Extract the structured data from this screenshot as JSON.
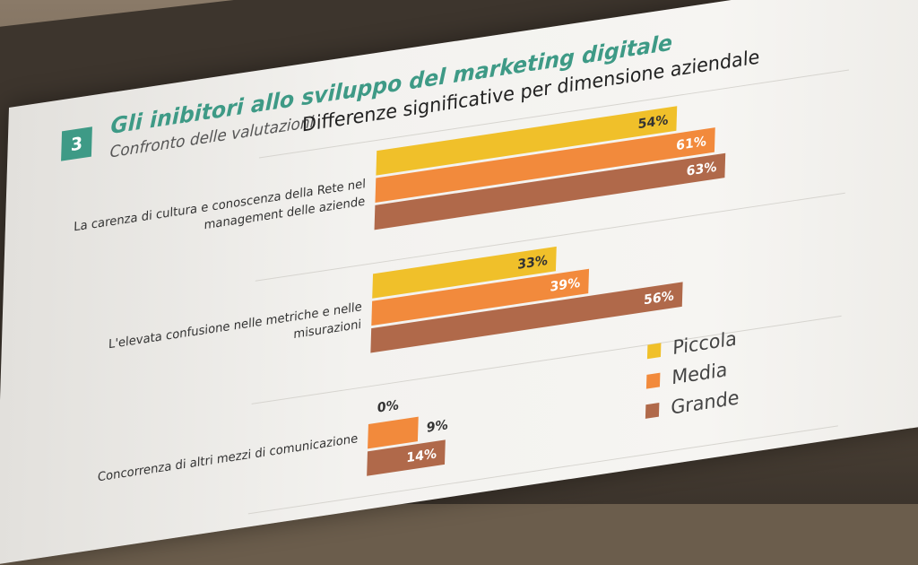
{
  "slide": {
    "section_number": "3",
    "title": "Gli inibitori allo sviluppo del marketing digitale",
    "subtitle": "Confronto delle valutazioni",
    "chart_heading": "Differenze significative per dimensione aziendale"
  },
  "chart_data": {
    "type": "bar",
    "orientation": "horizontal",
    "title": "Differenze significative per dimensione aziendale",
    "categories": [
      [
        "La carenza di cultura e conoscenza della Rete nel",
        "management delle aziende"
      ],
      [
        "L'elevata confusione nelle metriche e nelle",
        "misurazioni"
      ],
      [
        "Concorrenza di altri mezzi di comunicazione"
      ]
    ],
    "series": [
      {
        "name": "Piccola",
        "color": "#f0c02a",
        "values": [
          54,
          33,
          0
        ],
        "labels": [
          "54%",
          "33%",
          "0%"
        ]
      },
      {
        "name": "Media",
        "color": "#f28a3c",
        "values": [
          61,
          39,
          9
        ],
        "labels": [
          "61%",
          "39%",
          "9%"
        ]
      },
      {
        "name": "Grande",
        "color": "#b0694a",
        "values": [
          63,
          56,
          14
        ],
        "labels": [
          "63%",
          "56%",
          "14%"
        ]
      }
    ],
    "xlim": [
      0,
      70
    ],
    "grid": false,
    "legend": "bottom-right"
  }
}
